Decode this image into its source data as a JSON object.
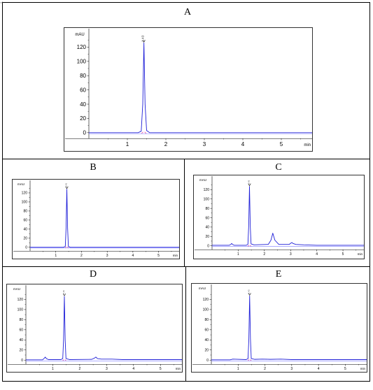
{
  "figure": {
    "panels": [
      {
        "id": "A",
        "label": "A",
        "chart_data": {
          "type": "line",
          "xlabel": "min",
          "ylabel": "mAU",
          "xlim": [
            0,
            5.8
          ],
          "ylim": [
            -8,
            140
          ],
          "xticks": [
            1,
            2,
            3,
            4,
            5
          ],
          "yticks": [
            0,
            20,
            40,
            60,
            80,
            100,
            120
          ],
          "grid": false,
          "peaks": [
            {
              "rt": 1.43,
              "height": 126,
              "width": 0.03,
              "label": "1.43"
            }
          ],
          "series": [
            {
              "x": [
                0,
                1.28,
                1.36,
                1.4,
                1.43,
                1.46,
                1.5,
                1.58,
                5.8
              ],
              "y": [
                0,
                0,
                2,
                40,
                126,
                40,
                3,
                0,
                0
              ]
            }
          ]
        }
      },
      {
        "id": "B",
        "label": "B",
        "chart_data": {
          "type": "line",
          "xlabel": "min",
          "ylabel": "mAU",
          "xlim": [
            0,
            5.8
          ],
          "ylim": [
            -8,
            140
          ],
          "xticks": [
            1,
            2,
            3,
            4,
            5
          ],
          "yticks": [
            0,
            20,
            40,
            60,
            80,
            100,
            120
          ],
          "grid": false,
          "peaks": [
            {
              "rt": 1.43,
              "height": 128,
              "width": 0.03,
              "label": "1.43"
            }
          ],
          "series": [
            {
              "x": [
                0,
                1.3,
                1.37,
                1.4,
                1.43,
                1.46,
                1.49,
                1.56,
                5.8
              ],
              "y": [
                0,
                0,
                2,
                42,
                128,
                42,
                2,
                0,
                0
              ]
            }
          ]
        }
      },
      {
        "id": "C",
        "label": "C",
        "chart_data": {
          "type": "line",
          "xlabel": "min",
          "ylabel": "mAU",
          "xlim": [
            0,
            5.8
          ],
          "ylim": [
            -8,
            140
          ],
          "xticks": [
            1,
            2,
            3,
            4,
            5
          ],
          "yticks": [
            0,
            20,
            40,
            60,
            80,
            100,
            120
          ],
          "grid": false,
          "peaks": [
            {
              "rt": 0.75,
              "height": 5,
              "width": 0.04
            },
            {
              "rt": 1.43,
              "height": 127,
              "width": 0.03,
              "label": "1.43"
            },
            {
              "rt": 2.32,
              "height": 27,
              "width": 0.06
            },
            {
              "rt": 3.05,
              "height": 7,
              "width": 0.05
            }
          ],
          "series": [
            {
              "x": [
                0,
                0.65,
                0.72,
                0.75,
                0.78,
                0.85,
                1.3,
                1.37,
                1.4,
                1.43,
                1.46,
                1.49,
                1.6,
                2.15,
                2.25,
                2.32,
                2.4,
                2.55,
                2.95,
                3.02,
                3.05,
                3.09,
                3.2,
                3.5,
                4.0,
                5.8
              ],
              "y": [
                1,
                1,
                3,
                5,
                3,
                1,
                1,
                3,
                42,
                127,
                42,
                4,
                2,
                3,
                12,
                27,
                12,
                3,
                3,
                6,
                7,
                5,
                3,
                2,
                1,
                1
              ]
            }
          ]
        }
      },
      {
        "id": "D",
        "label": "D",
        "chart_data": {
          "type": "line",
          "xlabel": "min",
          "ylabel": "mAU",
          "xlim": [
            0,
            5.8
          ],
          "ylim": [
            -8,
            140
          ],
          "xticks": [
            1,
            2,
            3,
            4,
            5
          ],
          "yticks": [
            0,
            20,
            40,
            60,
            80,
            100,
            120
          ],
          "grid": false,
          "peaks": [
            {
              "rt": 0.72,
              "height": 6,
              "width": 0.04
            },
            {
              "rt": 1.43,
              "height": 126,
              "width": 0.03,
              "label": "1.43"
            },
            {
              "rt": 2.6,
              "height": 6,
              "width": 0.05
            }
          ],
          "series": [
            {
              "x": [
                0,
                0.62,
                0.69,
                0.72,
                0.76,
                0.84,
                1.3,
                1.37,
                1.4,
                1.43,
                1.46,
                1.49,
                1.62,
                2.45,
                2.55,
                2.6,
                2.66,
                2.8,
                3.2,
                3.6,
                5.8
              ],
              "y": [
                0.5,
                0.5,
                4,
                6,
                3,
                1,
                1,
                3,
                40,
                126,
                40,
                3,
                1,
                1.5,
                4,
                6,
                3,
                2,
                2,
                1,
                1
              ]
            }
          ]
        }
      },
      {
        "id": "E",
        "label": "E",
        "chart_data": {
          "type": "line",
          "xlabel": "min",
          "ylabel": "mAU",
          "xlim": [
            0,
            5.8
          ],
          "ylim": [
            -8,
            140
          ],
          "xticks": [
            1,
            2,
            3,
            4,
            5
          ],
          "yticks": [
            0,
            20,
            40,
            60,
            80,
            100,
            120
          ],
          "grid": false,
          "peaks": [
            {
              "rt": 1.43,
              "height": 127,
              "width": 0.03,
              "label": "1.43"
            }
          ],
          "series": [
            {
              "x": [
                0,
                0.7,
                0.8,
                1.3,
                1.37,
                1.4,
                1.43,
                1.46,
                1.49,
                1.62,
                1.9,
                2.2,
                2.6,
                3.0,
                5.8
              ],
              "y": [
                0.5,
                0.5,
                2,
                1,
                3,
                42,
                127,
                42,
                3,
                1.5,
                2,
                1.5,
                2,
                1,
                1
              ]
            }
          ]
        }
      }
    ]
  },
  "colors": {
    "trace": "#1f1fd8",
    "baseline": "#7a7aff",
    "integration": "#e040a0",
    "frame": "#000000"
  }
}
